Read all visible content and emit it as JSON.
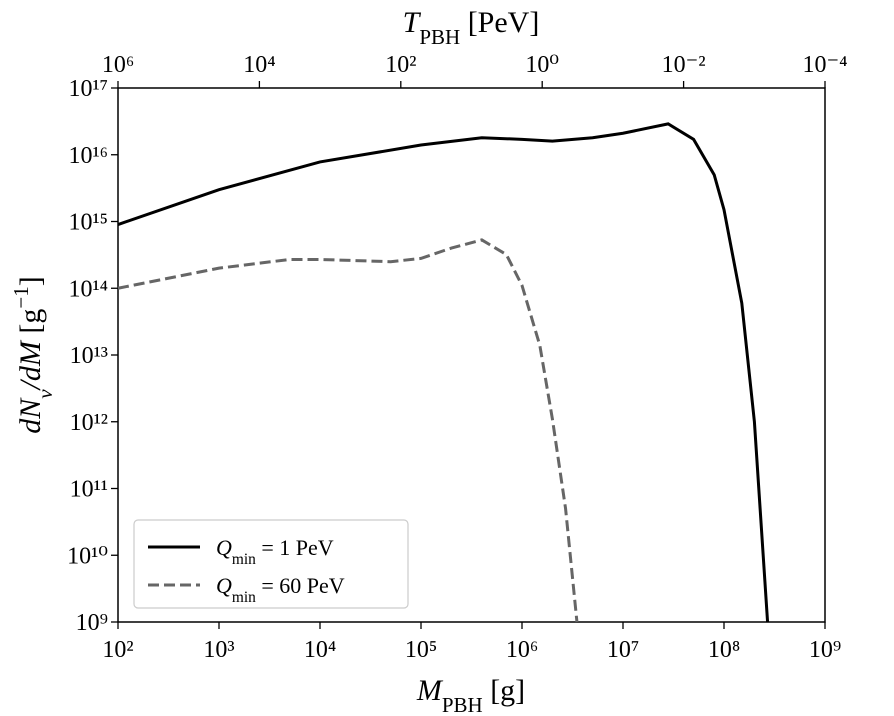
{
  "chart_data": {
    "type": "line",
    "xlabel": [
      {
        "text": "M",
        "style": "italic"
      },
      {
        "text": "PBH",
        "style": "sub"
      },
      {
        "text": " [g]",
        "style": "roman"
      }
    ],
    "ylabel": [
      {
        "text": "dN",
        "style": "italic"
      },
      {
        "text": "ν",
        "style": "sub-italic"
      },
      {
        "text": "/dM",
        "style": "italic"
      },
      {
        "text": " [g",
        "style": "roman"
      },
      {
        "text": "−1",
        "style": "sup"
      },
      {
        "text": "]",
        "style": "roman"
      }
    ],
    "x2label": [
      {
        "text": "T",
        "style": "italic"
      },
      {
        "text": "PBH",
        "style": "sub"
      },
      {
        "text": " [PeV]",
        "style": "roman"
      }
    ],
    "log_x": true,
    "log_y": true,
    "log_x2": true,
    "xlim": [
      100,
      1000000000
    ],
    "xticks": [
      {
        "value": 100,
        "label": "10²"
      },
      {
        "value": 1000,
        "label": "10³"
      },
      {
        "value": 10000,
        "label": "10⁴"
      },
      {
        "value": 100000,
        "label": "10⁵"
      },
      {
        "value": 1000000,
        "label": "10⁶"
      },
      {
        "value": 10000000,
        "label": "10⁷"
      },
      {
        "value": 100000000,
        "label": "10⁸"
      },
      {
        "value": 1000000000,
        "label": "10⁹"
      }
    ],
    "x2lim": [
      1000000,
      0.0001
    ],
    "x2ticks": [
      {
        "value": 1000000,
        "label": "10⁶"
      },
      {
        "value": 10000,
        "label": "10⁴"
      },
      {
        "value": 100,
        "label": "10²"
      },
      {
        "value": 1,
        "label": "10⁰"
      },
      {
        "value": 0.01,
        "label": "10⁻²"
      },
      {
        "value": 0.0001,
        "label": "10⁻⁴"
      }
    ],
    "ylim": [
      1000000000,
      100000000000000000
    ],
    "yticks": [
      {
        "value": 1000000000,
        "label": "10⁹"
      },
      {
        "value": 10000000000,
        "label": "10¹⁰"
      },
      {
        "value": 100000000000,
        "label": "10¹¹"
      },
      {
        "value": 1000000000000,
        "label": "10¹²"
      },
      {
        "value": 10000000000000,
        "label": "10¹³"
      },
      {
        "value": 100000000000000,
        "label": "10¹⁴"
      },
      {
        "value": 1000000000000000,
        "label": "10¹⁵"
      },
      {
        "value": 10000000000000000,
        "label": "10¹⁶"
      },
      {
        "value": 100000000000000000,
        "label": "10¹⁷"
      }
    ],
    "legend_position": "lower left",
    "series": [
      {
        "name": [
          {
            "text": "Q",
            "style": "italic"
          },
          {
            "text": "min",
            "style": "sub"
          },
          {
            "text": " = 1 PeV",
            "style": "roman"
          }
        ],
        "color": "#000000",
        "dash": "solid",
        "x": [
          100,
          1000,
          10000,
          100000,
          400000,
          1000000,
          2000000,
          5000000,
          10000000,
          28000000,
          50000000,
          80000000,
          100000000,
          150000000,
          200000000,
          270000000
        ],
        "values": [
          900000000000000,
          3000000000000000,
          7800000000000000,
          14000000000000000,
          18000000000000000,
          17000000000000000,
          16000000000000000,
          18000000000000000,
          21000000000000000,
          29000000000000000,
          17000000000000000,
          5000000000000000,
          1500000000000000,
          60000000000000,
          1000000000000,
          1000000000
        ]
      },
      {
        "name": [
          {
            "text": "Q",
            "style": "italic"
          },
          {
            "text": "min",
            "style": "sub"
          },
          {
            "text": " = 60 PeV",
            "style": "roman"
          }
        ],
        "color": "#666666",
        "dash": "dashed",
        "x": [
          100,
          1000,
          5000,
          10000,
          50000,
          100000,
          200000,
          400000,
          700000,
          1000000,
          1500000,
          2000000,
          2700000,
          3500000
        ],
        "values": [
          100000000000000,
          200000000000000,
          270000000000000,
          270000000000000,
          250000000000000,
          280000000000000,
          400000000000000,
          530000000000000,
          320000000000000,
          110000000000000,
          14000000000000,
          1100000000000,
          50000000000,
          1000000000
        ]
      }
    ]
  }
}
